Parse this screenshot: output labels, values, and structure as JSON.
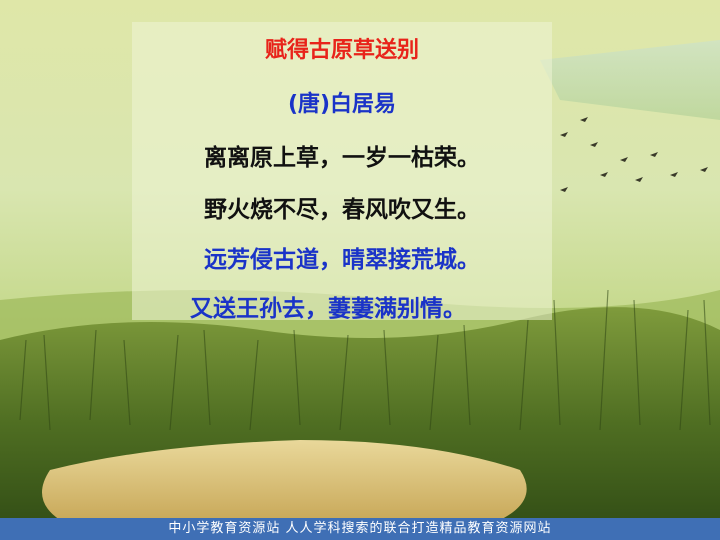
{
  "poem": {
    "title": "赋得古原草送别",
    "author": "(唐)白居易",
    "lines": [
      "离离原上草，一岁一枯荣。",
      "野火烧不尽，春风吹又生。",
      "远芳侵古道，晴翠接荒城。",
      "又送王孙去，萋萋满别情。"
    ]
  },
  "footer": {
    "text": "中小学教育资源站  人人学科搜索的联合打造精品教育资源网站"
  },
  "colors": {
    "title": "#e8231a",
    "highlight_lines": "#1a33c8",
    "plain_lines": "#111111",
    "footer_bg": "#3f6fb5"
  }
}
